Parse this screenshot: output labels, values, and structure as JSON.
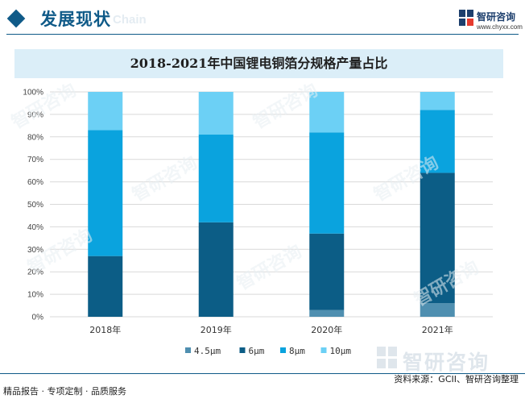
{
  "header": {
    "title": "发展现状",
    "ghost_text": "Chain"
  },
  "logo": {
    "name": "智研咨询",
    "url": "www.chyxx.com"
  },
  "brand_watermark": "智研咨询",
  "footer": {
    "left": "精品报告 · 专项定制 · 品质服务",
    "source": "资料来源：GCII、智研咨询整理"
  },
  "colors": {
    "brand": "#0f5a88",
    "title_bar_bg": "#dbeef8"
  },
  "chart_data": {
    "type": "bar",
    "stacked": true,
    "title": "2018-2021年中国锂电铜箔分规格产量占比",
    "categories": [
      "2018年",
      "2019年",
      "2020年",
      "2021年"
    ],
    "series": [
      {
        "name": "4.5μm",
        "color": "#4f8fb0",
        "values": [
          0,
          0,
          3,
          6
        ]
      },
      {
        "name": "6μm",
        "color": "#0c5d86",
        "values": [
          27,
          42,
          34,
          58
        ]
      },
      {
        "name": "8μm",
        "color": "#0aa3de",
        "values": [
          56,
          39,
          45,
          28
        ]
      },
      {
        "name": "10μm",
        "color": "#6cd0f5",
        "values": [
          17,
          19,
          18,
          8
        ]
      }
    ],
    "ylim": [
      0,
      100
    ],
    "yticks": [
      "0%",
      "10%",
      "20%",
      "30%",
      "40%",
      "50%",
      "60%",
      "70%",
      "80%",
      "90%",
      "100%"
    ],
    "grid": true,
    "legend": "bottom"
  }
}
